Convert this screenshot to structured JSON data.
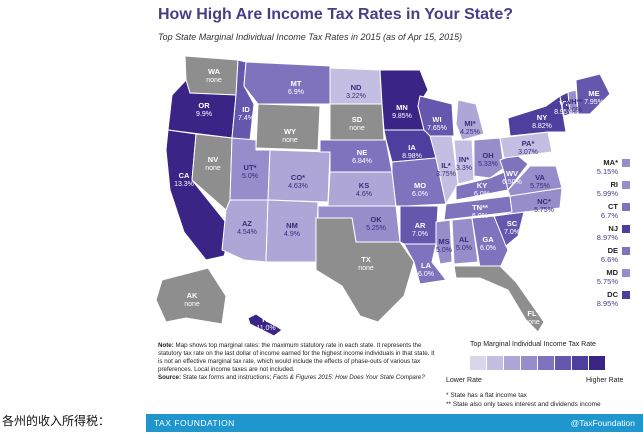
{
  "title": "How High Are Income Tax Rates in Your State?",
  "subtitle": "Top State Marginal Individual Income Tax Rates in 2015 (as of Apr 15, 2015)",
  "palette": {
    "none": "#8e8e8e",
    "rate_levels": [
      "#d9d6ec",
      "#c4bfe2",
      "#aea6d7",
      "#978dcb",
      "#7f73be",
      "#6657ae",
      "#4e3e9d",
      "#3a2486"
    ],
    "level_edges": [
      3.0,
      4.0,
      5.0,
      6.0,
      7.0,
      8.0,
      9.0
    ],
    "ocean": "#ffffff",
    "footer": "#1d97ce",
    "title_color": "#4a3d86"
  },
  "map": {
    "states": [
      {
        "abbr": "WA",
        "value": "none"
      },
      {
        "abbr": "OR",
        "value": "9.9%"
      },
      {
        "abbr": "CA",
        "value": "13.3%"
      },
      {
        "abbr": "NV",
        "value": "none"
      },
      {
        "abbr": "ID",
        "value": "7.4%"
      },
      {
        "abbr": "MT",
        "value": "6.9%"
      },
      {
        "abbr": "WY",
        "value": "none"
      },
      {
        "abbr": "UT*",
        "value": "5.0%"
      },
      {
        "abbr": "AZ",
        "value": "4.54%"
      },
      {
        "abbr": "CO*",
        "value": "4.63%"
      },
      {
        "abbr": "NM",
        "value": "4.9%"
      },
      {
        "abbr": "ND",
        "value": "3.22%"
      },
      {
        "abbr": "SD",
        "value": "none"
      },
      {
        "abbr": "NE",
        "value": "6.84%"
      },
      {
        "abbr": "KS",
        "value": "4.6%"
      },
      {
        "abbr": "OK",
        "value": "5.25%"
      },
      {
        "abbr": "TX",
        "value": "none"
      },
      {
        "abbr": "MN",
        "value": "9.85%"
      },
      {
        "abbr": "IA",
        "value": "8.98%"
      },
      {
        "abbr": "MO",
        "value": "6.0%"
      },
      {
        "abbr": "AR",
        "value": "7.0%"
      },
      {
        "abbr": "LA",
        "value": "6.0%"
      },
      {
        "abbr": "WI",
        "value": "7.65%"
      },
      {
        "abbr": "IL*",
        "value": "3.75%"
      },
      {
        "abbr": "MI*",
        "value": "4.25%"
      },
      {
        "abbr": "IN*",
        "value": "3.3%"
      },
      {
        "abbr": "OH",
        "value": "5.33%"
      },
      {
        "abbr": "KY",
        "value": "6.0%"
      },
      {
        "abbr": "TN**",
        "value": "6.0%"
      },
      {
        "abbr": "MS",
        "value": "5.0%"
      },
      {
        "abbr": "AL",
        "value": "5.0%"
      },
      {
        "abbr": "GA",
        "value": "6.0%"
      },
      {
        "abbr": "FL",
        "value": "none"
      },
      {
        "abbr": "SC",
        "value": "7.0%"
      },
      {
        "abbr": "NC*",
        "value": "5.75%"
      },
      {
        "abbr": "VA",
        "value": "5.75%"
      },
      {
        "abbr": "WV",
        "value": "6.50%"
      },
      {
        "abbr": "PA*",
        "value": "3.07%"
      },
      {
        "abbr": "NY",
        "value": "8.82%"
      },
      {
        "abbr": "ME",
        "value": "7.95%"
      },
      {
        "abbr": "VT",
        "value": "8.95%"
      },
      {
        "abbr": "NH**",
        "value": "5.0%"
      },
      {
        "abbr": "AK",
        "value": "none"
      },
      {
        "abbr": "HI",
        "value": "11.0%"
      }
    ],
    "side_states": [
      {
        "abbr": "MA*",
        "value": "5.15%"
      },
      {
        "abbr": "RI",
        "value": "5.99%"
      },
      {
        "abbr": "CT",
        "value": "6.7%"
      },
      {
        "abbr": "NJ",
        "value": "8.97%"
      },
      {
        "abbr": "DE",
        "value": "6.6%"
      },
      {
        "abbr": "MD",
        "value": "5.75%"
      },
      {
        "abbr": "DC",
        "value": "8.95%"
      }
    ]
  },
  "notes": {
    "note_label": "Note:",
    "note_text": "Map shows top marginal rates: the maximum statutory rate in each state. It represents the statutory tax rate on the last dollar of income earned for the highest income individuals in that state. It is not an effective marginal tax rate, which would include the effects of phase-outs of various tax preferences. Local income taxes are not included.",
    "source_label": "Source:",
    "source_text": "State tax forms and instructions;",
    "source_italic": "Facts & Figures 2015: How Does Your State Compare?"
  },
  "legend": {
    "title": "Top Marginal Individual Income Tax Rate",
    "low_label": "Lower Rate",
    "high_label": "Higher Rate"
  },
  "footnotes": {
    "flat": "* State has a flat income tax",
    "interest": "** State also only taxes interest and dividends income"
  },
  "footer": {
    "org": "TAX FOUNDATION",
    "handle": "@TaxFoundation"
  },
  "caption": "各州的收入所得税："
}
